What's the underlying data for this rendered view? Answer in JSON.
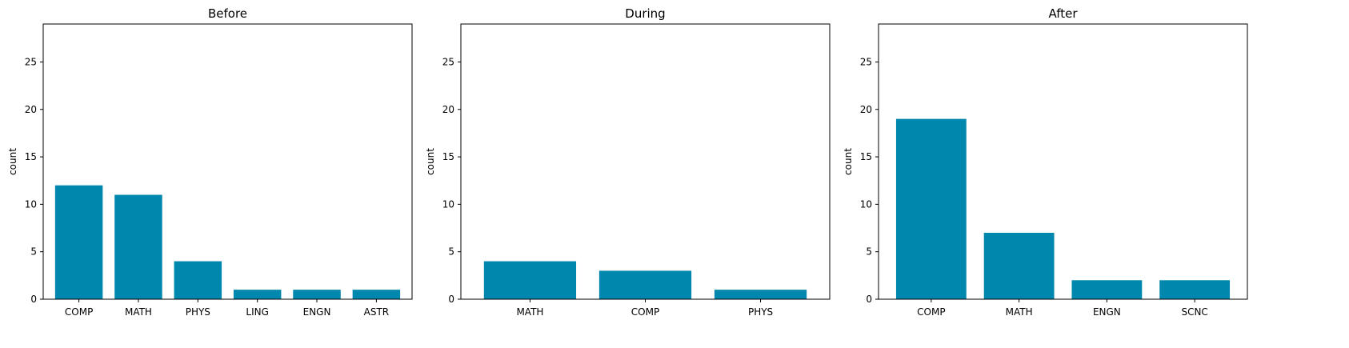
{
  "chart_data": [
    {
      "type": "bar",
      "title": "Before",
      "ylabel": "count",
      "xlabel": "",
      "categories": [
        "COMP",
        "MATH",
        "PHYS",
        "LING",
        "ENGN",
        "ASTR"
      ],
      "values": [
        12,
        11,
        4,
        1,
        1,
        1
      ],
      "ylim": [
        0,
        29
      ],
      "yticks": [
        0,
        5,
        10,
        15,
        20,
        25
      ],
      "grid": false,
      "bar_color": "#0087ad"
    },
    {
      "type": "bar",
      "title": "During",
      "ylabel": "count",
      "xlabel": "",
      "categories": [
        "MATH",
        "COMP",
        "PHYS"
      ],
      "values": [
        4,
        3,
        1
      ],
      "ylim": [
        0,
        29
      ],
      "yticks": [
        0,
        5,
        10,
        15,
        20,
        25
      ],
      "grid": false,
      "bar_color": "#0087ad"
    },
    {
      "type": "bar",
      "title": "After",
      "ylabel": "count",
      "xlabel": "",
      "categories": [
        "COMP",
        "MATH",
        "ENGN",
        "SCNC"
      ],
      "values": [
        19,
        7,
        2,
        2
      ],
      "ylim": [
        0,
        29
      ],
      "yticks": [
        0,
        5,
        10,
        15,
        20,
        25
      ],
      "grid": false,
      "bar_color": "#0087ad"
    }
  ]
}
